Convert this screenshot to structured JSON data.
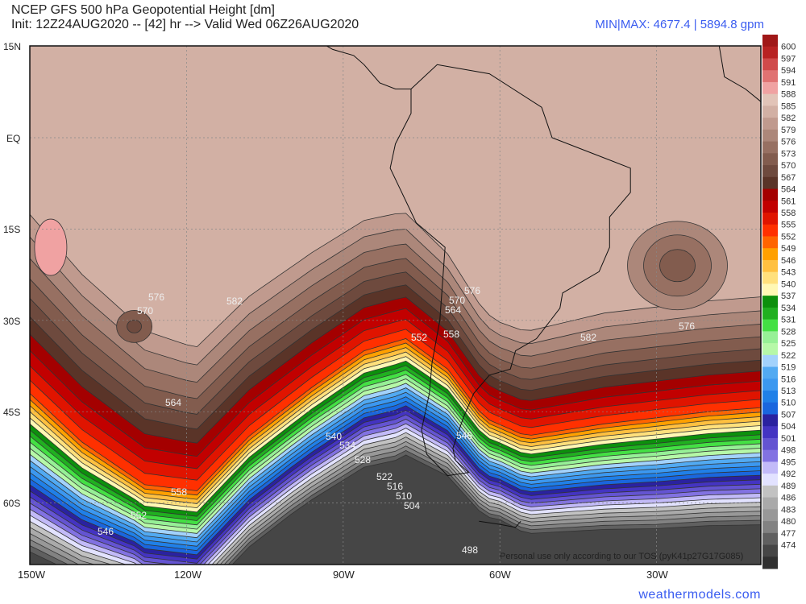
{
  "header": {
    "title": "NCEP GFS 500 hPa Geopotential Height [dm]",
    "subtitle": "Init: 12Z24AUG2020 -- [42] hr --> Valid Wed 06Z26AUG2020",
    "minmax": "MIN|MAX: 4677.4 | 5894.8 gpm"
  },
  "map": {
    "lat_labels": [
      "15N",
      "EQ",
      "15S",
      "30S",
      "45S",
      "60S"
    ],
    "lon_labels": [
      "150W",
      "120W",
      "90W",
      "60W",
      "30W"
    ],
    "contour_labels": [
      "576",
      "570",
      "582",
      "564",
      "558",
      "552",
      "546",
      "552",
      "558",
      "564",
      "570",
      "576",
      "582",
      "576",
      "540",
      "534",
      "528",
      "522",
      "516",
      "510",
      "504",
      "498",
      "546"
    ],
    "watermark": "Personal use only according to our TOS (pyK41p27G17G085)"
  },
  "colorbar": {
    "labels": [
      "600",
      "597",
      "594",
      "591",
      "588",
      "585",
      "582",
      "579",
      "576",
      "573",
      "570",
      "567",
      "564",
      "561",
      "558",
      "555",
      "552",
      "549",
      "546",
      "543",
      "540",
      "537",
      "534",
      "531",
      "528",
      "525",
      "522",
      "519",
      "516",
      "513",
      "510",
      "507",
      "504",
      "501",
      "498",
      "495",
      "492",
      "489",
      "486",
      "483",
      "480",
      "477",
      "474"
    ],
    "colors": [
      "#a01818",
      "#b82222",
      "#d04a4a",
      "#e07272",
      "#f0a2a2",
      "#e2c4b8",
      "#d2b0a4",
      "#c09a8e",
      "#ac877a",
      "#977062",
      "#825c4e",
      "#6e4a3e",
      "#5a3428",
      "#a40000",
      "#c20000",
      "#e01400",
      "#ff3000",
      "#ff6400",
      "#ffa000",
      "#ffc040",
      "#ffe07c",
      "#fff8b4",
      "#0c900c",
      "#20b020",
      "#44e044",
      "#96f096",
      "#b6f8a8",
      "#a2d2fc",
      "#52aaf2",
      "#3c98f0",
      "#2080e8",
      "#1a66de",
      "#2a22a0",
      "#4434c2",
      "#6454d2",
      "#8272e2",
      "#c2baf8",
      "#e2e2ff",
      "#c2c2c2",
      "#aaaaaa",
      "#989898",
      "#828282",
      "#606060",
      "#464646",
      "#303030"
    ]
  },
  "footer": {
    "site": "weathermodels.com"
  }
}
